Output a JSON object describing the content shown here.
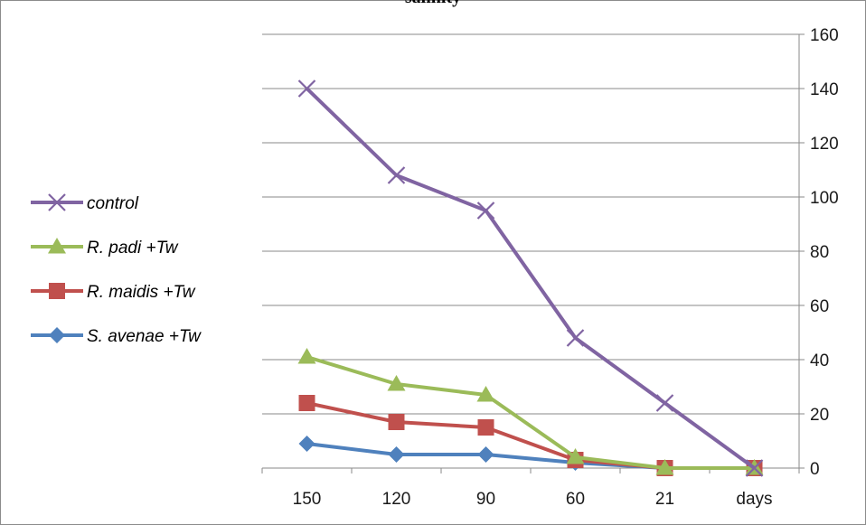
{
  "chart_data": {
    "type": "line",
    "title": "salinity",
    "categories": [
      "150",
      "120",
      "90",
      "60",
      "21",
      "days"
    ],
    "ylim": [
      0,
      160
    ],
    "yticks": [
      0,
      20,
      40,
      60,
      80,
      100,
      120,
      140,
      160
    ],
    "y_axis_side": "right",
    "grid": "horizontal",
    "legend_position": "left",
    "series": [
      {
        "name": "control",
        "color": "#8064a2",
        "marker": "x",
        "values": [
          140,
          108,
          95,
          48,
          24,
          0
        ]
      },
      {
        "name": "R. padi +Tw",
        "color": "#9bbb59",
        "marker": "triangle",
        "values": [
          41,
          31,
          27,
          4,
          0,
          0
        ]
      },
      {
        "name": "R. maidis +Tw",
        "color": "#c0504d",
        "marker": "square",
        "values": [
          24,
          17,
          15,
          3,
          0,
          0
        ]
      },
      {
        "name": "S. avenae +Tw",
        "color": "#4f81bd",
        "marker": "diamond",
        "values": [
          9,
          5,
          5,
          2,
          0,
          0
        ]
      }
    ]
  }
}
